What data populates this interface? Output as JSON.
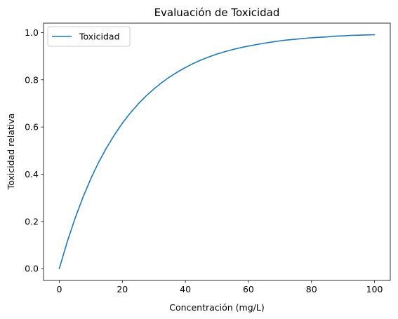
{
  "chart_data": {
    "type": "line",
    "title": "Evaluación de Toxicidad",
    "xlabel": "Concentración (mg/L)",
    "ylabel": "Toxicidad relativa",
    "xlim": [
      -5,
      105
    ],
    "ylim": [
      -0.05,
      1.04
    ],
    "x_ticks": [
      0,
      20,
      40,
      60,
      80,
      100
    ],
    "x_tick_labels": [
      "0",
      "20",
      "40",
      "60",
      "80",
      "100"
    ],
    "y_ticks": [
      0.0,
      0.2,
      0.4,
      0.6,
      0.8,
      1.0
    ],
    "y_tick_labels": [
      "0.0",
      "0.2",
      "0.4",
      "0.6",
      "0.8",
      "1.0"
    ],
    "grid": false,
    "legend_position": "upper-left",
    "series": [
      {
        "name": "Toxicidad",
        "color": "#1f77b4",
        "x": [
          0,
          2.5,
          5,
          7.5,
          10,
          12.5,
          15,
          17.5,
          20,
          22.5,
          25,
          27.5,
          30,
          32.5,
          35,
          37.5,
          40,
          42.5,
          45,
          47.5,
          50,
          52.5,
          55,
          57.5,
          60,
          62.5,
          65,
          67.5,
          70,
          72.5,
          75,
          77.5,
          80,
          82.5,
          85,
          87.5,
          90,
          92.5,
          95,
          97.5,
          100
        ],
        "y": [
          0.0,
          0.113,
          0.213,
          0.302,
          0.381,
          0.451,
          0.512,
          0.567,
          0.616,
          0.659,
          0.697,
          0.731,
          0.761,
          0.788,
          0.812,
          0.833,
          0.852,
          0.869,
          0.884,
          0.897,
          0.909,
          0.919,
          0.928,
          0.936,
          0.943,
          0.949,
          0.955,
          0.96,
          0.965,
          0.969,
          0.972,
          0.975,
          0.978,
          0.98,
          0.982,
          0.985,
          0.986,
          0.988,
          0.989,
          0.99,
          0.991
        ]
      }
    ]
  }
}
